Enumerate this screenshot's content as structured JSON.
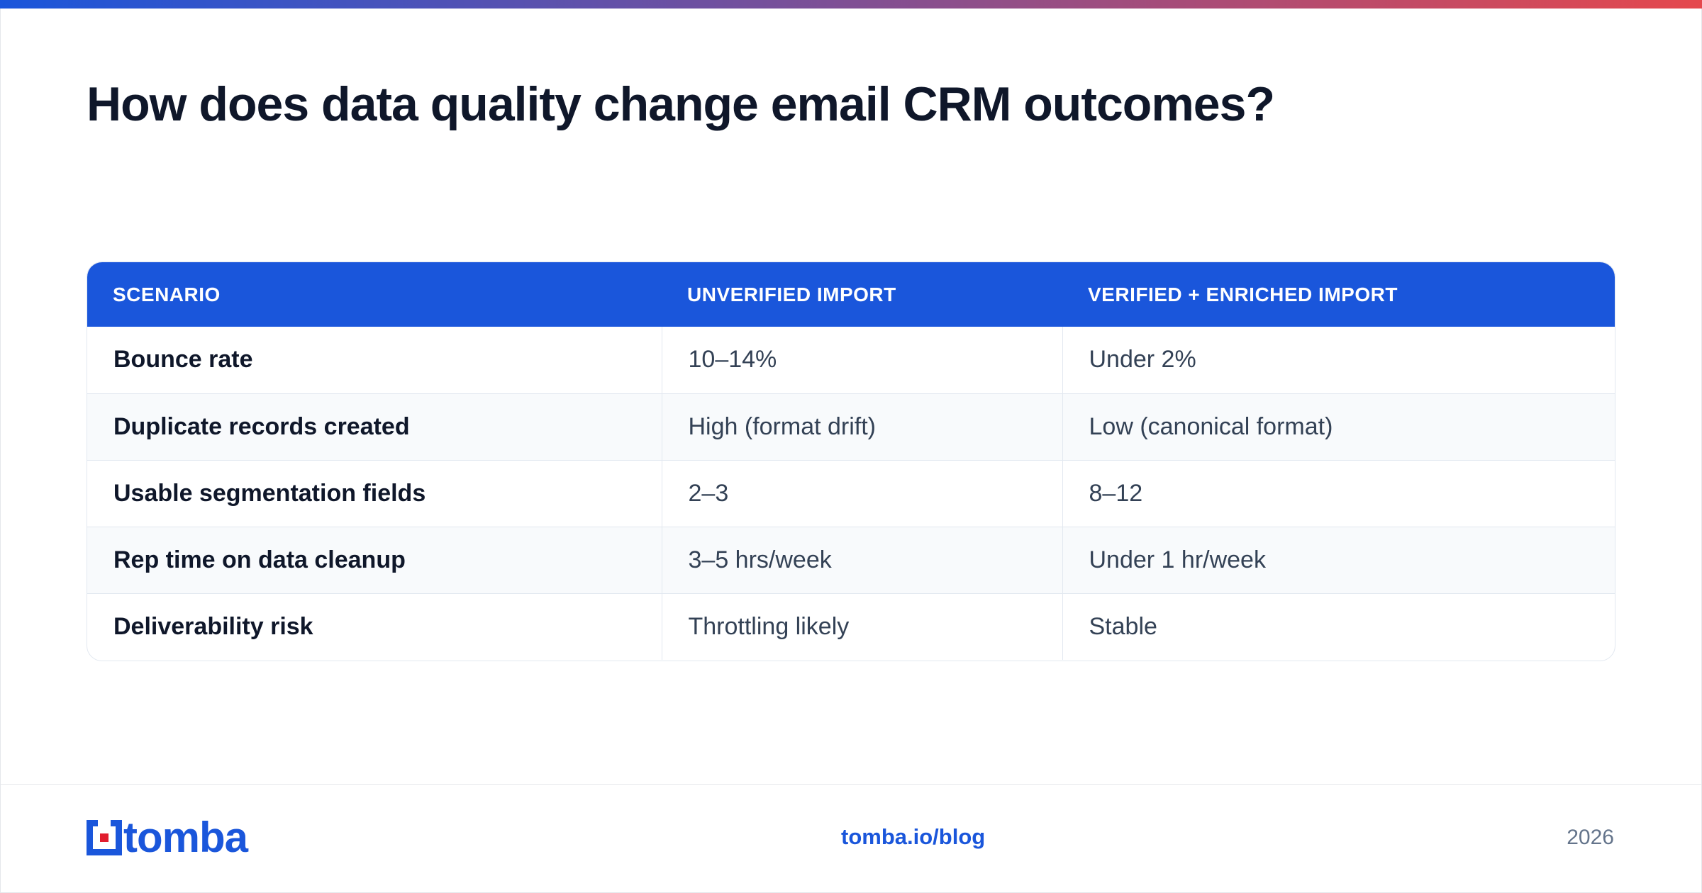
{
  "title": "How does data quality change email CRM outcomes?",
  "table": {
    "headers": [
      "SCENARIO",
      "UNVERIFIED IMPORT",
      "VERIFIED + ENRICHED IMPORT"
    ],
    "rows": [
      [
        "Bounce rate",
        "10–14%",
        "Under 2%"
      ],
      [
        "Duplicate records created",
        "High (format drift)",
        "Low (canonical format)"
      ],
      [
        "Usable segmentation fields",
        "2–3",
        "8–12"
      ],
      [
        "Rep time on data cleanup",
        "3–5 hrs/week",
        "Under 1 hr/week"
      ],
      [
        "Deliverability risk",
        "Throttling likely",
        "Stable"
      ]
    ]
  },
  "footer": {
    "logo_text": "tomba",
    "link": "tomba.io/blog",
    "year": "2026"
  },
  "colors": {
    "accent_blue": "#1a56db",
    "gradient_start": "#1a56db",
    "gradient_end": "#e5484d",
    "logo_red": "#e11d2e"
  },
  "icons": {
    "logo_mark": "tomba-logo-icon"
  }
}
